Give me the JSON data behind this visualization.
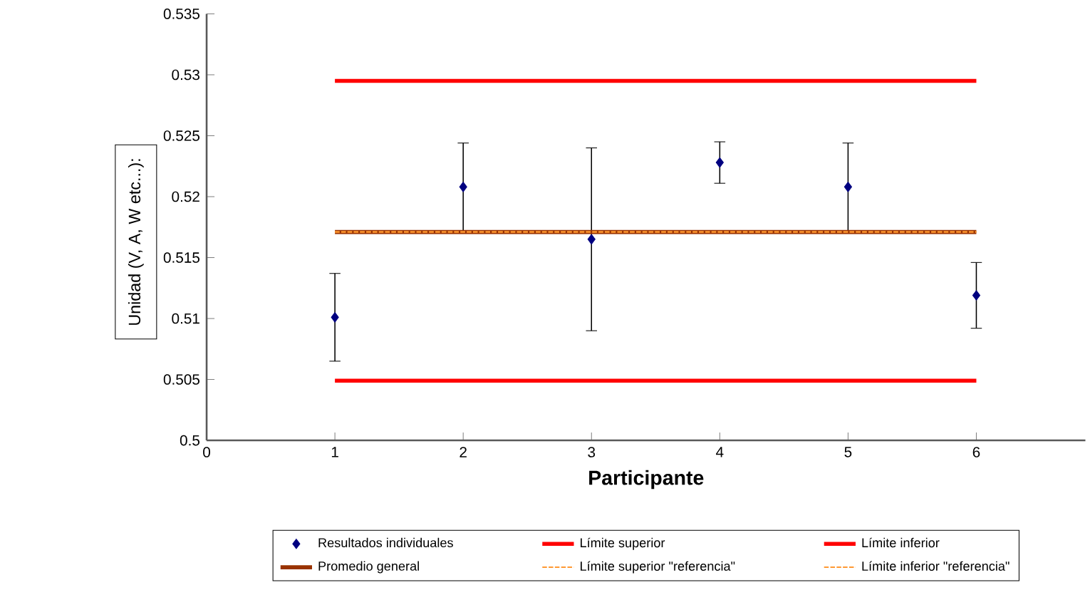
{
  "chart_data": {
    "type": "scatter",
    "xlabel": "Participante",
    "ylabel": "Unidad (V, A, W etc...):",
    "xlim": [
      0,
      6.85
    ],
    "xticks": [
      0,
      1,
      2,
      3,
      4,
      5,
      6
    ],
    "ylim": [
      0.5,
      0.535
    ],
    "yticks": [
      0.5,
      0.505,
      0.51,
      0.515,
      0.52,
      0.525,
      0.53,
      0.535
    ],
    "grid": false,
    "legend": "bottom",
    "series": [
      {
        "name": "Resultados individuales",
        "marker": "diamond",
        "color": "#000080",
        "x": [
          1,
          2,
          3,
          4,
          5,
          6
        ],
        "values": [
          0.5101,
          0.5208,
          0.5165,
          0.5228,
          0.5208,
          0.5119
        ],
        "errors": [
          0.0036,
          0.0036,
          0.0075,
          0.0017,
          0.0036,
          0.0027
        ]
      },
      {
        "name": "Límite superior",
        "type": "line",
        "color": "#ff0000",
        "line_style": "solid",
        "x": [
          1,
          6
        ],
        "values": [
          0.5295,
          0.5295
        ]
      },
      {
        "name": "Límite inferior",
        "type": "line",
        "color": "#ff0000",
        "line_style": "solid",
        "x": [
          1,
          6
        ],
        "values": [
          0.5049,
          0.5049
        ]
      },
      {
        "name": "Promedio general",
        "type": "line",
        "color": "#993300",
        "line_style": "solid",
        "x": [
          1,
          6
        ],
        "values": [
          0.5171,
          0.5171
        ]
      },
      {
        "name": "Límite superior \"referencia\"",
        "type": "line",
        "color": "#ff9933",
        "line_style": "dashed",
        "x": [
          1,
          6
        ],
        "values": [
          0.5171,
          0.5171
        ]
      },
      {
        "name": "Límite inferior \"referencia\"",
        "type": "line",
        "color": "#ff9933",
        "line_style": "dashed",
        "x": [
          1,
          6
        ],
        "values": [
          0.5171,
          0.5171
        ]
      }
    ]
  }
}
